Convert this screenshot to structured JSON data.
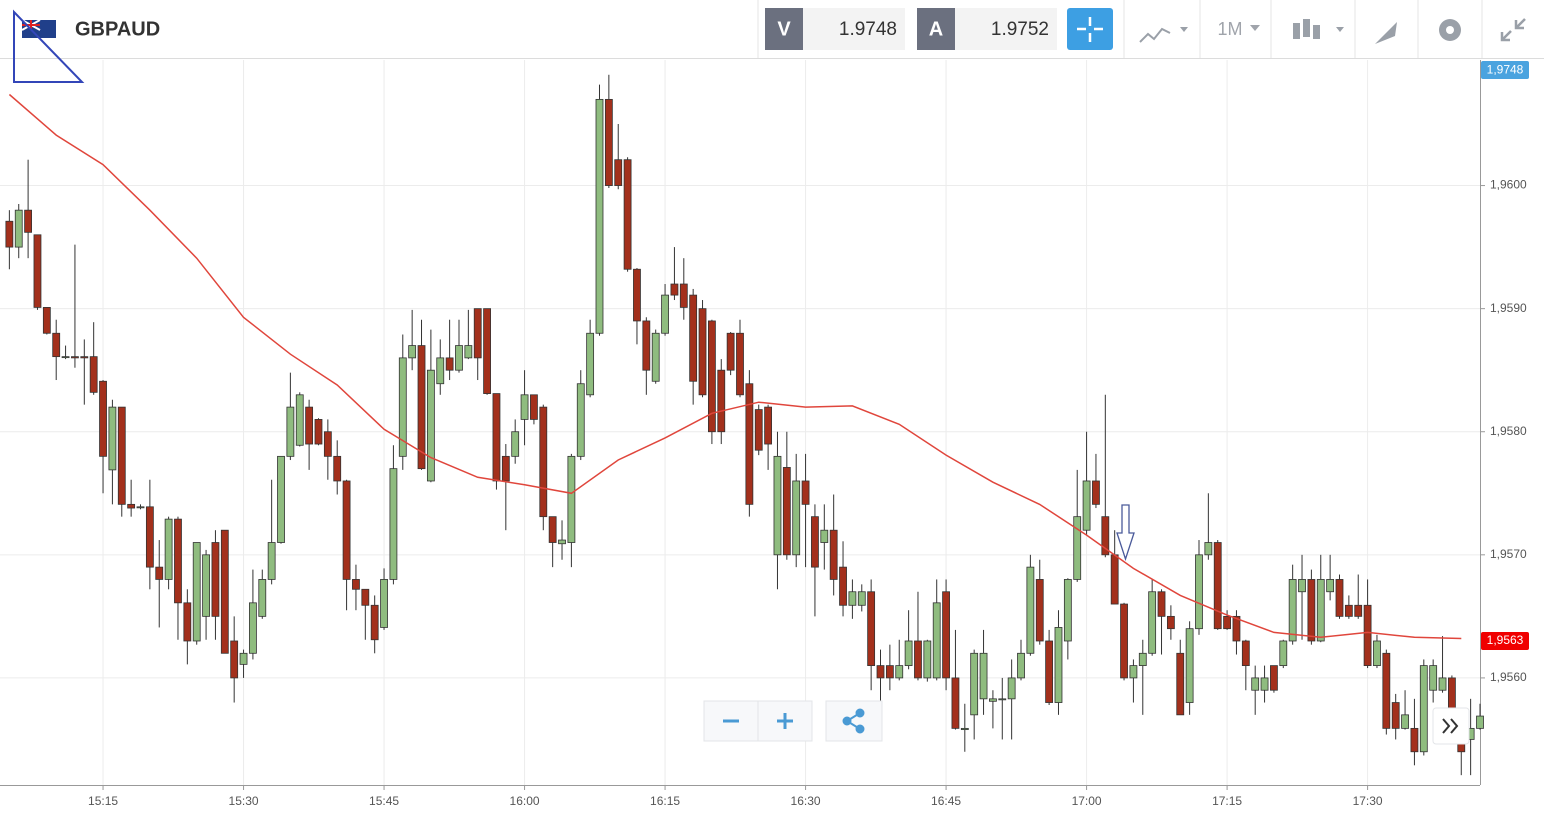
{
  "header": {
    "symbol": "GBPAUD",
    "bid_label": "V",
    "bid": "1.9748",
    "ask_label": "A",
    "ask": "1.9752",
    "timeframe": "1M"
  },
  "chart_data": {
    "type": "candlestick",
    "up_color": "#8fbc7f",
    "down_color": "#a3301c",
    "ylim": [
      1.95513,
      1.96102
    ],
    "yticks": [
      {
        "value": 1.956,
        "label": "1,9560"
      },
      {
        "value": 1.957,
        "label": "1,9570"
      },
      {
        "value": 1.958,
        "label": "1,9580"
      },
      {
        "value": 1.959,
        "label": "1,9590"
      },
      {
        "value": 1.96,
        "label": "1,9600"
      }
    ],
    "xlim": [
      "15:04",
      "17:42"
    ],
    "xticks": [
      "15:15",
      "15:30",
      "15:45",
      "16:00",
      "16:15",
      "16:30",
      "16:45",
      "17:00",
      "17:15",
      "17:30"
    ],
    "grid": true,
    "current_price_label": "1,9748",
    "ma_last": {
      "value": 1.9563,
      "label": "1,9563"
    },
    "x": [
      "15:05",
      "15:06",
      "15:07",
      "15:08",
      "15:09",
      "15:10",
      "15:11",
      "15:12",
      "15:13",
      "15:14",
      "15:15",
      "15:16",
      "15:17",
      "15:18",
      "15:19",
      "15:20",
      "15:21",
      "15:22",
      "15:23",
      "15:24",
      "15:25",
      "15:26",
      "15:27",
      "15:28",
      "15:29",
      "15:30",
      "15:31",
      "15:32",
      "15:33",
      "15:34",
      "15:35",
      "15:36",
      "15:37",
      "15:38",
      "15:39",
      "15:40",
      "15:41",
      "15:42",
      "15:43",
      "15:44",
      "15:45",
      "15:46",
      "15:47",
      "15:48",
      "15:49",
      "15:50",
      "15:51",
      "15:52",
      "15:53",
      "15:54",
      "15:55",
      "15:56",
      "15:57",
      "15:58",
      "15:59",
      "16:00",
      "16:01",
      "16:02",
      "16:03",
      "16:04",
      "16:05",
      "16:06",
      "16:07",
      "16:08",
      "16:09",
      "16:10",
      "16:11",
      "16:12",
      "16:13",
      "16:14",
      "16:15",
      "16:16",
      "16:17",
      "16:18",
      "16:19",
      "16:20",
      "16:21",
      "16:22",
      "16:23",
      "16:24",
      "16:25",
      "16:26",
      "16:27",
      "16:28",
      "16:29",
      "16:30",
      "16:31",
      "16:32",
      "16:33",
      "16:34",
      "16:35",
      "16:36",
      "16:37",
      "16:38",
      "16:39",
      "16:40",
      "16:41",
      "16:42",
      "16:43",
      "16:44",
      "16:45",
      "16:46",
      "16:47",
      "16:48",
      "16:49",
      "16:50",
      "16:51",
      "16:52",
      "16:53",
      "16:54",
      "16:55",
      "16:56",
      "16:57",
      "16:58",
      "16:59",
      "17:00",
      "17:01",
      "17:02",
      "17:03",
      "17:04",
      "17:05",
      "17:06",
      "17:07",
      "17:08",
      "17:09",
      "17:10",
      "17:11",
      "17:12",
      "17:13",
      "17:14",
      "17:15",
      "17:16",
      "17:17",
      "17:18",
      "17:19",
      "17:20",
      "17:21",
      "17:22",
      "17:23",
      "17:24",
      "17:25",
      "17:26",
      "17:27",
      "17:28",
      "17:29",
      "17:30",
      "17:31",
      "17:32",
      "17:33",
      "17:34",
      "17:35",
      "17:36",
      "17:37",
      "17:38",
      "17:39",
      "17:40",
      "17:41",
      "17:42"
    ],
    "open": [
      1.95971,
      1.9595,
      1.9598,
      1.9596,
      1.95901,
      1.9588,
      1.95861,
      1.95861,
      1.95861,
      1.95861,
      1.95841,
      1.95769,
      1.9582,
      1.95741,
      1.95739,
      1.95739,
      1.9569,
      1.9568,
      1.95729,
      1.95661,
      1.9563,
      1.9565,
      1.9571,
      1.9572,
      1.9563,
      1.95611,
      1.9562,
      1.9565,
      1.9568,
      1.9571,
      1.9578,
      1.95789,
      1.9582,
      1.9581,
      1.958,
      1.9578,
      1.9576,
      1.9568,
      1.95672,
      1.95659,
      1.95641,
      1.9568,
      1.9578,
      1.9586,
      1.9587,
      1.9576,
      1.95839,
      1.9586,
      1.9585,
      1.9586,
      1.959,
      1.959,
      1.95831,
      1.9578,
      1.9578,
      1.9581,
      1.9583,
      1.9582,
      1.95731,
      1.95709,
      1.9571,
      1.9578,
      1.9583,
      1.9588,
      1.9607,
      1.96021,
      1.96021,
      1.95932,
      1.9589,
      1.95841,
      1.9588,
      1.9592,
      1.9592,
      1.95911,
      1.959,
      1.9589,
      1.9585,
      1.9588,
      1.9588,
      1.95839,
      1.95818,
      1.9582,
      1.957,
      1.95771,
      1.957,
      1.9576,
      1.95731,
      1.9571,
      1.9572,
      1.9569,
      1.95659,
      1.95659,
      1.9567,
      1.9561,
      1.9561,
      1.956,
      1.9561,
      1.9563,
      1.956,
      1.956,
      1.9567,
      1.956,
      1.95558,
      1.9557,
      1.95583,
      1.95581,
      1.95583,
      1.95583,
      1.956,
      1.9562,
      1.9568,
      1.9563,
      1.9558,
      1.9563,
      1.9568,
      1.9572,
      1.9576,
      1.95731,
      1.957,
      1.9566,
      1.956,
      1.9561,
      1.9562,
      1.9567,
      1.9565,
      1.9562,
      1.9558,
      1.9564,
      1.957,
      1.9571,
      1.9565,
      1.9565,
      1.9563,
      1.9559,
      1.9559,
      1.9561,
      1.9561,
      1.9563,
      1.9567,
      1.9568,
      1.9563,
      1.9567,
      1.9568,
      1.95659,
      1.95659,
      1.95659,
      1.9561,
      1.9562,
      1.9558,
      1.95559,
      1.95559,
      1.9554,
      1.9559,
      1.9559,
      1.956,
      1.9555,
      1.9555,
      1.95559
    ],
    "high": [
      1.9598,
      1.95985,
      1.96021,
      1.9596,
      1.95901,
      1.95891,
      1.9587,
      1.95952,
      1.95875,
      1.95889,
      1.95842,
      1.95826,
      1.9582,
      1.95761,
      1.95741,
      1.95761,
      1.95712,
      1.95731,
      1.95731,
      1.95672,
      1.9571,
      1.95704,
      1.9572,
      1.9572,
      1.9565,
      1.95623,
      1.95688,
      1.95688,
      1.95761,
      1.9578,
      1.95848,
      1.95832,
      1.95826,
      1.95811,
      1.9581,
      1.95793,
      1.95761,
      1.95692,
      1.95672,
      1.95667,
      1.95689,
      1.95789,
      1.95879,
      1.95899,
      1.95891,
      1.95883,
      1.95875,
      1.95891,
      1.95891,
      1.95899,
      1.959,
      1.959,
      1.95831,
      1.9579,
      1.9581,
      1.9585,
      1.9583,
      1.95822,
      1.95731,
      1.95728,
      1.95782,
      1.9585,
      1.95891,
      1.96082,
      1.9609,
      1.9605,
      1.96023,
      1.95933,
      1.95893,
      1.95883,
      1.9592,
      1.9595,
      1.95941,
      1.95916,
      1.95907,
      1.95891,
      1.95859,
      1.95881,
      1.95891,
      1.9585,
      1.95822,
      1.95822,
      1.958,
      1.958,
      1.95782,
      1.95782,
      1.95741,
      1.95741,
      1.95749,
      1.95711,
      1.9568,
      1.95676,
      1.9568,
      1.95623,
      1.95627,
      1.95631,
      1.95655,
      1.9567,
      1.95631,
      1.9568,
      1.9568,
      1.95639,
      1.95579,
      1.95623,
      1.95639,
      1.9559,
      1.956,
      1.95615,
      1.95631,
      1.957,
      1.95696,
      1.95639,
      1.95655,
      1.95681,
      1.95769,
      1.958,
      1.95782,
      1.9583,
      1.9572,
      1.95661,
      1.95615,
      1.95631,
      1.9568,
      1.95672,
      1.95659,
      1.95631,
      1.95646,
      1.95712,
      1.9575,
      1.95712,
      1.95655,
      1.95655,
      1.95631,
      1.9561,
      1.9561,
      1.9561,
      1.95631,
      1.95692,
      1.957,
      1.95688,
      1.957,
      1.957,
      1.95684,
      1.95667,
      1.95684,
      1.9568,
      1.95635,
      1.95623,
      1.95587,
      1.9559,
      1.95583,
      1.95615,
      1.95615,
      1.95634,
      1.95602,
      1.95559,
      1.95583,
      1.95579
    ],
    "low": [
      1.95932,
      1.95941,
      1.95941,
      1.95899,
      1.95879,
      1.95842,
      1.95859,
      1.95852,
      1.95822,
      1.9583,
      1.9575,
      1.95741,
      1.95731,
      1.95731,
      1.95737,
      1.95672,
      1.95641,
      1.95672,
      1.95631,
      1.95611,
      1.95627,
      1.95631,
      1.95631,
      1.9562,
      1.9558,
      1.956,
      1.95615,
      1.95648,
      1.95676,
      1.95709,
      1.95777,
      1.95788,
      1.95769,
      1.95789,
      1.95761,
      1.95749,
      1.95655,
      1.95655,
      1.95631,
      1.9562,
      1.95639,
      1.95676,
      1.95769,
      1.9585,
      1.95769,
      1.95759,
      1.9583,
      1.95842,
      1.95848,
      1.95859,
      1.95842,
      1.9583,
      1.95753,
      1.9572,
      1.95774,
      1.95789,
      1.95806,
      1.9572,
      1.9569,
      1.95696,
      1.9569,
      1.95777,
      1.95828,
      1.95878,
      1.95998,
      1.95997,
      1.9593,
      1.95871,
      1.9583,
      1.95839,
      1.95878,
      1.95907,
      1.95891,
      1.95822,
      1.95828,
      1.9579,
      1.9579,
      1.95846,
      1.95828,
      1.95731,
      1.95781,
      1.95769,
      1.95672,
      1.95696,
      1.9569,
      1.9569,
      1.9565,
      1.95688,
      1.95667,
      1.9565,
      1.95648,
      1.95654,
      1.9559,
      1.9558,
      1.9559,
      1.95598,
      1.95607,
      1.95598,
      1.95597,
      1.95598,
      1.9559,
      1.95558,
      1.9554,
      1.9555,
      1.9557,
      1.95559,
      1.9555,
      1.9555,
      1.95598,
      1.95618,
      1.95627,
      1.95578,
      1.9557,
      1.95615,
      1.95678,
      1.95716,
      1.95738,
      1.95698,
      1.9566,
      1.95598,
      1.9558,
      1.9557,
      1.95618,
      1.95619,
      1.95631,
      1.9557,
      1.9557,
      1.95635,
      1.95696,
      1.95639,
      1.95639,
      1.95619,
      1.9559,
      1.9557,
      1.9558,
      1.95588,
      1.95608,
      1.95627,
      1.95631,
      1.95627,
      1.95629,
      1.95663,
      1.95648,
      1.95648,
      1.95648,
      1.95608,
      1.95608,
      1.95554,
      1.9555,
      1.95558,
      1.95529,
      1.95537,
      1.9558,
      1.95588,
      1.9555,
      1.95521,
      1.95521,
      1.95558
    ],
    "close": [
      1.9595,
      1.9598,
      1.95962,
      1.95901,
      1.9588,
      1.95861,
      1.95861,
      1.9586,
      1.9586,
      1.95832,
      1.9578,
      1.9582,
      1.95741,
      1.95738,
      1.95739,
      1.9569,
      1.9568,
      1.95729,
      1.95661,
      1.9563,
      1.9571,
      1.957,
      1.9565,
      1.9562,
      1.956,
      1.9562,
      1.95661,
      1.9568,
      1.9571,
      1.9578,
      1.9582,
      1.9583,
      1.9579,
      1.9579,
      1.9578,
      1.9576,
      1.9568,
      1.95672,
      1.95659,
      1.95631,
      1.9568,
      1.9577,
      1.9586,
      1.9587,
      1.9577,
      1.9585,
      1.9586,
      1.9585,
      1.9587,
      1.9587,
      1.9586,
      1.95831,
      1.9576,
      1.9576,
      1.958,
      1.9583,
      1.9581,
      1.95731,
      1.9571,
      1.95712,
      1.9578,
      1.95839,
      1.9588,
      1.9607,
      1.96,
      1.96,
      1.95932,
      1.9589,
      1.9585,
      1.9588,
      1.95911,
      1.95911,
      1.95901,
      1.95841,
      1.9583,
      1.958,
      1.958,
      1.9585,
      1.9583,
      1.95741,
      1.95785,
      1.9579,
      1.9578,
      1.957,
      1.9576,
      1.95741,
      1.9569,
      1.9572,
      1.9568,
      1.95659,
      1.9567,
      1.9567,
      1.9561,
      1.956,
      1.956,
      1.9561,
      1.9563,
      1.956,
      1.9563,
      1.95661,
      1.956,
      1.95559,
      1.95559,
      1.9562,
      1.9562,
      1.95583,
      1.95583,
      1.956,
      1.9562,
      1.9569,
      1.9563,
      1.9558,
      1.95641,
      1.9568,
      1.95731,
      1.9576,
      1.95741,
      1.957,
      1.9566,
      1.956,
      1.9561,
      1.9562,
      1.9567,
      1.9565,
      1.9564,
      1.9557,
      1.9564,
      1.957,
      1.9571,
      1.9564,
      1.9564,
      1.9563,
      1.9561,
      1.956,
      1.956,
      1.9559,
      1.9563,
      1.9568,
      1.9568,
      1.9563,
      1.9568,
      1.9568,
      1.9565,
      1.9565,
      1.9565,
      1.9561,
      1.9563,
      1.95559,
      1.95559,
      1.9557,
      1.9554,
      1.9561,
      1.9561,
      1.956,
      1.9555,
      1.9554,
      1.95559,
      1.95569
    ],
    "moving_average": {
      "color": "#e0463c",
      "x": [
        "15:05",
        "15:10",
        "15:15",
        "15:20",
        "15:25",
        "15:30",
        "15:35",
        "15:40",
        "15:45",
        "15:50",
        "15:55",
        "16:00",
        "16:05",
        "16:10",
        "16:15",
        "16:20",
        "16:25",
        "16:30",
        "16:35",
        "16:40",
        "16:45",
        "16:50",
        "16:55",
        "17:00",
        "17:05",
        "17:10",
        "17:15",
        "17:20",
        "17:25",
        "17:30",
        "17:35",
        "17:40"
      ],
      "values": [
        1.96074,
        1.96041,
        1.96017,
        1.9598,
        1.95941,
        1.95893,
        1.95863,
        1.95838,
        1.95802,
        1.95779,
        1.95763,
        1.95757,
        1.9575,
        1.95777,
        1.95795,
        1.95815,
        1.95824,
        1.9582,
        1.95821,
        1.95806,
        1.95781,
        1.95759,
        1.95741,
        1.95716,
        1.95689,
        1.95667,
        1.95651,
        1.95637,
        1.95633,
        1.95637,
        1.95633,
        1.95632
      ]
    }
  }
}
